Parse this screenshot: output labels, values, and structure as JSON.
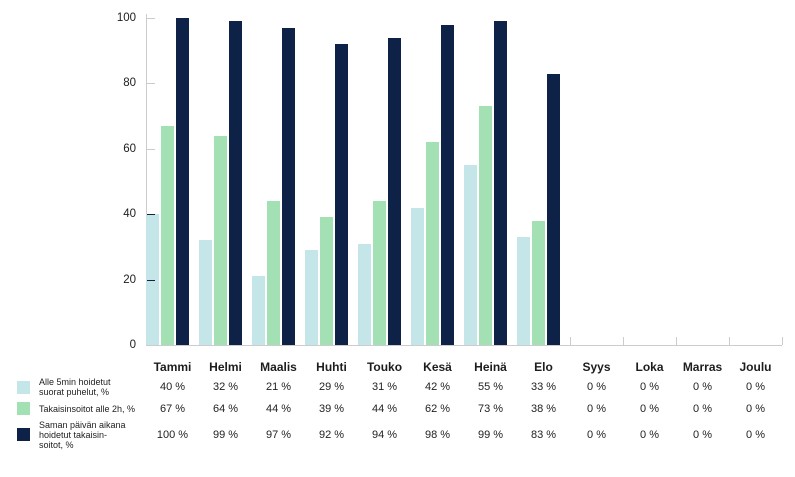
{
  "colors": {
    "series1": "#c5e6e9",
    "series2": "#a3e0b4",
    "series3": "#0e2247",
    "axis_line": "#cccccc",
    "text": "#1d1d1f"
  },
  "chart_data": {
    "type": "bar",
    "title": "",
    "xlabel": "",
    "ylabel": "",
    "categories": [
      "Tammi",
      "Helmi",
      "Maalis",
      "Huhti",
      "Touko",
      "Kesä",
      "Heinä",
      "Elo",
      "Syys",
      "Loka",
      "Marras",
      "Joulu"
    ],
    "series": [
      {
        "name": "Alle 5min hoidetut suorat puhelut, %",
        "color": "#c5e6e9",
        "values": [
          40,
          32,
          21,
          29,
          31,
          42,
          55,
          33,
          0,
          0,
          0,
          0
        ]
      },
      {
        "name": "Takaisinsoitot alle 2h, %",
        "color": "#a3e0b4",
        "values": [
          67,
          64,
          44,
          39,
          44,
          62,
          73,
          38,
          0,
          0,
          0,
          0
        ]
      },
      {
        "name": "Saman päivän aikana hoidetut takaisinsoitot, %",
        "color": "#0e2247",
        "values": [
          100,
          99,
          97,
          92,
          94,
          98,
          99,
          83,
          0,
          0,
          0,
          0
        ]
      }
    ],
    "y_ticks": [
      0,
      20,
      40,
      60,
      80,
      100
    ],
    "ylim": [
      0,
      102
    ],
    "grid": false,
    "legend_position": "bottom-left-table"
  },
  "table": {
    "columns": [
      "Tammi",
      "Helmi",
      "Maalis",
      "Huhti",
      "Touko",
      "Kesä",
      "Heinä",
      "Elo",
      "Syys",
      "Loka",
      "Marras",
      "Joulu"
    ],
    "row_labels": [
      {
        "lines": [
          "Alle 5min hoidetut",
          "suorat puhelut, %"
        ],
        "swatch_color": "#c5e6e9"
      },
      {
        "lines": [
          "Takaisinsoitot alle 2h, %"
        ],
        "swatch_color": "#a3e0b4"
      },
      {
        "lines": [
          "Saman päivän aikana",
          "hoidetut takaisin-",
          "soitot, %"
        ],
        "swatch_color": "#0e2247"
      }
    ],
    "rows": [
      [
        "40 %",
        "32 %",
        "21 %",
        "29 %",
        "31 %",
        "42 %",
        "55 %",
        "33 %",
        "0 %",
        "0 %",
        "0 %",
        "0 %"
      ],
      [
        "67 %",
        "64 %",
        "44 %",
        "39 %",
        "44 %",
        "62 %",
        "73 %",
        "38 %",
        "0 %",
        "0 %",
        "0 %",
        "0 %"
      ],
      [
        "100 %",
        "99 %",
        "97 %",
        "92 %",
        "94 %",
        "98 %",
        "99 %",
        "83 %",
        "0 %",
        "0 %",
        "0 %",
        "0 %"
      ]
    ]
  }
}
